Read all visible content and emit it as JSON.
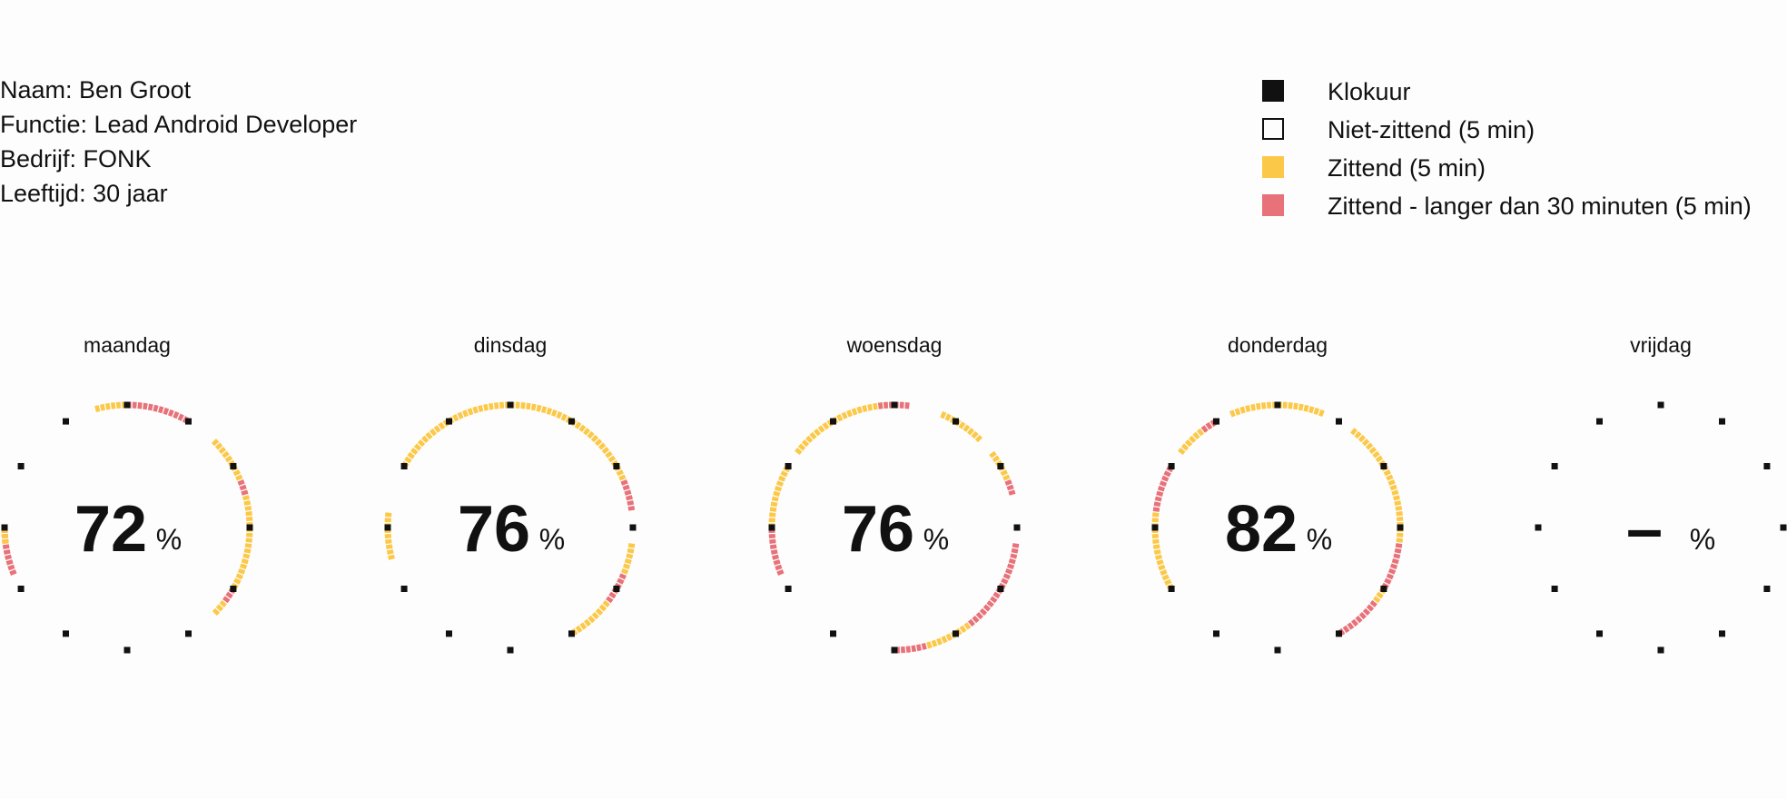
{
  "profile": {
    "name": "Naam: Ben Groot",
    "role": "Functie: Lead Android Developer",
    "company": "Bedrijf: FONK",
    "age": "Leeftijd: 30 jaar"
  },
  "legend": {
    "items": [
      {
        "label": "Klokuur",
        "color": "#111111",
        "style": "filled"
      },
      {
        "label": "Niet-zittend (5 min)",
        "color": "#111111",
        "style": "outline"
      },
      {
        "label": "Zittend (5 min)",
        "color": "#fcc847",
        "style": "filled"
      },
      {
        "label": "Zittend - langer dan 30 minuten (5 min)",
        "color": "#e8727a",
        "style": "filled"
      }
    ]
  },
  "colors": {
    "hour": "#111111",
    "sitting": "#fcc847",
    "sitting_long": "#e8727a"
  },
  "chart_data": {
    "type": "radial-timeline",
    "unit": "%",
    "hours_on_dial": 12,
    "slots_per_hour": 12,
    "days": [
      {
        "name": "maandag",
        "percent_label": "72",
        "percent": 72,
        "segments": [
          {
            "from": 11.5,
            "to": 12,
            "type": "sitting"
          },
          {
            "from": 0,
            "to": 1,
            "type": "sitting_long"
          },
          {
            "from": 1.5,
            "to": 2.25,
            "type": "sitting"
          },
          {
            "from": 2.25,
            "to": 2.5,
            "type": "sitting_long"
          },
          {
            "from": 2.5,
            "to": 3.25,
            "type": "sitting"
          },
          {
            "from": 3.25,
            "to": 4,
            "type": "sitting"
          },
          {
            "from": 4,
            "to": 4.25,
            "type": "sitting_long"
          },
          {
            "from": 4.25,
            "to": 4.5,
            "type": "sitting"
          },
          {
            "from": 8.25,
            "to": 9,
            "type": "sitting_long"
          },
          {
            "from": 8.75,
            "to": 9,
            "type": "sitting"
          }
        ]
      },
      {
        "name": "dinsdag",
        "percent_label": "76",
        "percent": 76,
        "segments": [
          {
            "from": 10,
            "to": 12,
            "type": "sitting"
          },
          {
            "from": 0,
            "to": 1.5,
            "type": "sitting"
          },
          {
            "from": 1.5,
            "to": 2.25,
            "type": "sitting"
          },
          {
            "from": 2.25,
            "to": 2.75,
            "type": "sitting_long"
          },
          {
            "from": 3.25,
            "to": 3.75,
            "type": "sitting"
          },
          {
            "from": 3.75,
            "to": 4.25,
            "type": "sitting_long"
          },
          {
            "from": 4.25,
            "to": 5,
            "type": "sitting"
          },
          {
            "from": 8.5,
            "to": 9.25,
            "type": "sitting"
          }
        ]
      },
      {
        "name": "woensdag",
        "percent_label": "76",
        "percent": 76,
        "segments": [
          {
            "from": 10.25,
            "to": 12,
            "type": "sitting"
          },
          {
            "from": 11.75,
            "to": 12,
            "type": "sitting_long"
          },
          {
            "from": 0,
            "to": 0.25,
            "type": "sitting_long"
          },
          {
            "from": 0.75,
            "to": 1.5,
            "type": "sitting"
          },
          {
            "from": 1.75,
            "to": 2.25,
            "type": "sitting"
          },
          {
            "from": 2.25,
            "to": 2.5,
            "type": "sitting_long"
          },
          {
            "from": 3.25,
            "to": 4.75,
            "type": "sitting_long"
          },
          {
            "from": 4.75,
            "to": 5.5,
            "type": "sitting"
          },
          {
            "from": 5.5,
            "to": 6,
            "type": "sitting_long"
          },
          {
            "from": 8.25,
            "to": 9,
            "type": "sitting_long"
          },
          {
            "from": 9,
            "to": 10,
            "type": "sitting"
          }
        ]
      },
      {
        "name": "donderdag",
        "percent_label": "82",
        "percent": 82,
        "segments": [
          {
            "from": 10.25,
            "to": 11,
            "type": "sitting"
          },
          {
            "from": 10.75,
            "to": 11,
            "type": "sitting_long"
          },
          {
            "from": 11.25,
            "to": 12,
            "type": "sitting"
          },
          {
            "from": 0,
            "to": 0.75,
            "type": "sitting"
          },
          {
            "from": 1.25,
            "to": 3.25,
            "type": "sitting"
          },
          {
            "from": 3.25,
            "to": 4,
            "type": "sitting_long"
          },
          {
            "from": 4,
            "to": 4.25,
            "type": "sitting"
          },
          {
            "from": 4.25,
            "to": 5,
            "type": "sitting_long"
          },
          {
            "from": 8,
            "to": 9.25,
            "type": "sitting"
          },
          {
            "from": 9.25,
            "to": 10,
            "type": "sitting_long"
          }
        ]
      },
      {
        "name": "vrijdag",
        "percent_label": "–",
        "percent": null,
        "segments": []
      }
    ]
  }
}
